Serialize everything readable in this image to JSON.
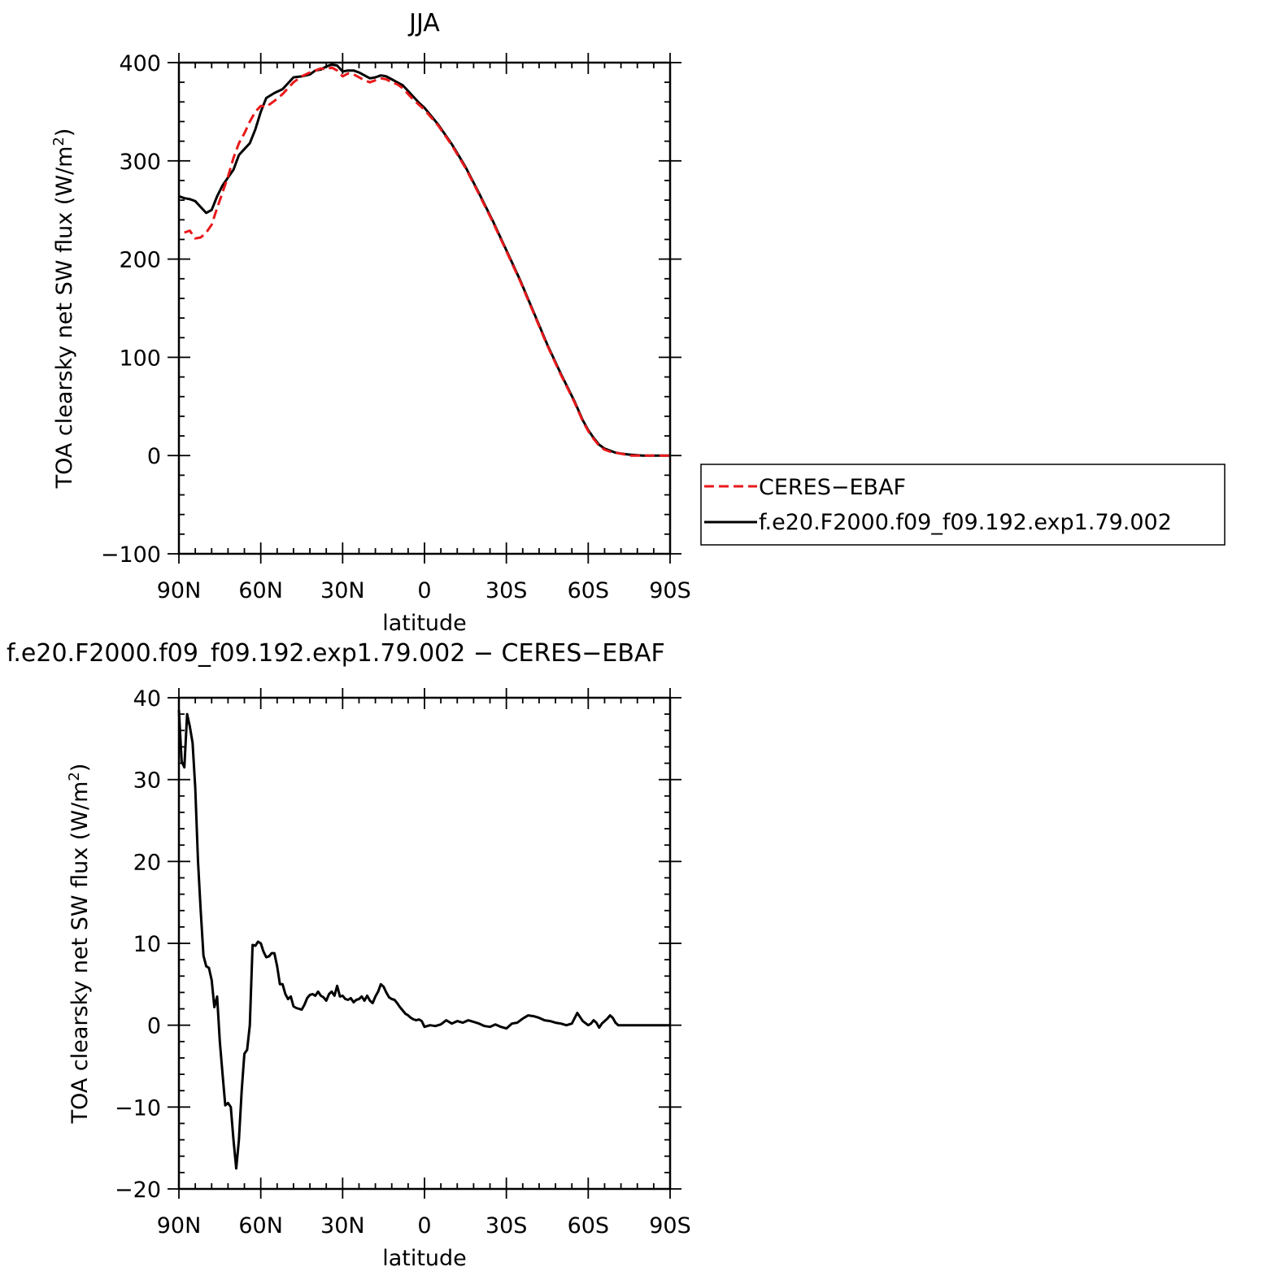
{
  "chart_data": [
    {
      "type": "line",
      "title": "JJA",
      "xlabel": "latitude",
      "ylabel": "TOA clearsky net SW flux (W/m²)",
      "ylabel_parts": {
        "main": "TOA clearsky net SW flux (W/m",
        "sup": "2",
        "end": ")"
      },
      "xlim": [
        90,
        -90
      ],
      "ylim": [
        -100,
        400
      ],
      "xticks": [
        90,
        60,
        30,
        0,
        -30,
        -60,
        -90
      ],
      "xtick_labels": [
        "90N",
        "60N",
        "30N",
        "0",
        "30S",
        "60S",
        "90S"
      ],
      "yticks": [
        -100,
        0,
        100,
        200,
        300,
        400
      ],
      "ytick_labels": [
        "−100",
        "0",
        "100",
        "200",
        "300",
        "400"
      ],
      "legend_position": "right",
      "series": [
        {
          "name": "CERES−EBAF",
          "color": "#e8191b",
          "dash": "dashed",
          "x": [
            88,
            86,
            84,
            82,
            80,
            78,
            76,
            74,
            72,
            70,
            68,
            66,
            64,
            62,
            60,
            58,
            55,
            52,
            50,
            48,
            45,
            42,
            40,
            38,
            36,
            34,
            32,
            30,
            28,
            26,
            24,
            22,
            20,
            18,
            16,
            14,
            12,
            10,
            8,
            6,
            4,
            2,
            0,
            -5,
            -10,
            -15,
            -20,
            -25,
            -30,
            -35,
            -40,
            -45,
            -50,
            -55,
            -58,
            -60,
            -62,
            -64,
            -66,
            -68,
            -70,
            -72,
            -75,
            -80,
            -85,
            -90
          ],
          "y": [
            227,
            229,
            221,
            222,
            227,
            235,
            252,
            268,
            284,
            303,
            318,
            328,
            340,
            350,
            356,
            355,
            361,
            368,
            374,
            380,
            386,
            390,
            392,
            394,
            393,
            395,
            392,
            386,
            389,
            388,
            385,
            382,
            380,
            382,
            384,
            383,
            380,
            378,
            374,
            368,
            362,
            357,
            352,
            336,
            316,
            293,
            266,
            238,
            208,
            178,
            145,
            112,
            82,
            54,
            35,
            25,
            17,
            10,
            6,
            4,
            3,
            2,
            0,
            0,
            0,
            0
          ]
        },
        {
          "name": "f.e20.F2000.f09_f09.192.exp1.79.002",
          "color": "#000000",
          "dash": "solid",
          "x": [
            90,
            88,
            86,
            84,
            82,
            80,
            78,
            76,
            74,
            72,
            70,
            68,
            66,
            64,
            62,
            60,
            58,
            55,
            52,
            50,
            48,
            45,
            42,
            40,
            38,
            36,
            34,
            32,
            30,
            28,
            26,
            24,
            22,
            20,
            18,
            16,
            14,
            12,
            10,
            8,
            6,
            4,
            2,
            0,
            -5,
            -10,
            -15,
            -20,
            -25,
            -30,
            -35,
            -40,
            -45,
            -50,
            -55,
            -58,
            -60,
            -62,
            -64,
            -66,
            -68,
            -70,
            -72,
            -75,
            -80,
            -85,
            -90
          ],
          "y": [
            264,
            262,
            261,
            259,
            253,
            247,
            250,
            264,
            275,
            283,
            291,
            306,
            312,
            318,
            332,
            350,
            364,
            369,
            373,
            379,
            385,
            386,
            388,
            392,
            393,
            396,
            398,
            397,
            391,
            392,
            392,
            390,
            387,
            384,
            385,
            387,
            386,
            383,
            380,
            377,
            371,
            365,
            359,
            354,
            337,
            317,
            294,
            267,
            239,
            209,
            179,
            146,
            113,
            83,
            55,
            36,
            26,
            18,
            11,
            7,
            5,
            3,
            2,
            1,
            0,
            0,
            0
          ]
        }
      ]
    },
    {
      "type": "line",
      "title": "f.e20.F2000.f09_f09.192.exp1.79.002 − CERES−EBAF",
      "xlabel": "latitude",
      "ylabel": "TOA clearsky net SW flux (W/m²)",
      "ylabel_parts": {
        "main": "TOA clearsky net SW flux (W/m",
        "sup": "2",
        "end": ")"
      },
      "xlim": [
        90,
        -90
      ],
      "ylim": [
        -20,
        40
      ],
      "xticks": [
        90,
        60,
        30,
        0,
        -30,
        -60,
        -90
      ],
      "xtick_labels": [
        "90N",
        "60N",
        "30N",
        "0",
        "30S",
        "60S",
        "90S"
      ],
      "yticks": [
        -20,
        -10,
        0,
        10,
        20,
        30,
        40
      ],
      "ytick_labels": [
        "−20",
        "−10",
        "0",
        "10",
        "20",
        "30",
        "40"
      ],
      "series": [
        {
          "color": "#000000",
          "dash": "solid",
          "x": [
            90,
            89,
            88,
            87,
            86,
            85,
            84,
            83,
            82,
            81,
            80,
            79,
            78,
            77,
            76,
            75,
            74,
            73,
            72,
            71,
            70,
            69,
            68,
            67,
            66,
            65,
            64,
            63,
            62,
            61,
            60,
            59,
            58,
            57,
            56,
            55,
            54,
            53,
            52,
            51,
            50,
            49,
            48,
            47,
            46,
            45,
            44,
            43,
            42,
            41,
            40,
            39,
            38,
            37,
            36,
            35,
            34,
            33,
            32,
            31,
            30,
            29,
            28,
            27,
            26,
            25,
            24,
            23,
            22,
            21,
            20,
            19,
            18,
            17,
            16,
            15,
            14,
            13,
            12,
            11,
            10,
            9,
            8,
            7,
            6,
            5,
            4,
            3,
            2,
            1,
            0,
            -2,
            -4,
            -6,
            -8,
            -10,
            -12,
            -14,
            -16,
            -18,
            -20,
            -22,
            -24,
            -26,
            -28,
            -30,
            -32,
            -34,
            -36,
            -38,
            -40,
            -42,
            -44,
            -46,
            -48,
            -50,
            -52,
            -54,
            -56,
            -58,
            -60,
            -61,
            -62,
            -63,
            -64,
            -65,
            -66,
            -67,
            -68,
            -69,
            -70,
            -71,
            -72,
            -73,
            -74,
            -75,
            -76,
            -77,
            -78,
            -79,
            -80,
            -82,
            -84,
            -86,
            -88,
            -90
          ],
          "y": [
            38.5,
            32.2,
            31.5,
            38.0,
            36.5,
            34.5,
            29.0,
            20.0,
            14.0,
            8.5,
            7.2,
            7.0,
            5.5,
            2.2,
            3.5,
            -2.0,
            -6.0,
            -9.8,
            -9.5,
            -10.0,
            -14.0,
            -17.5,
            -14.0,
            -8.0,
            -3.5,
            -3.0,
            0.0,
            9.8,
            9.7,
            10.2,
            10.0,
            9.0,
            8.3,
            8.4,
            8.8,
            8.8,
            7.2,
            5.0,
            5.0,
            3.8,
            3.2,
            3.5,
            2.3,
            2.1,
            2.0,
            1.9,
            2.5,
            3.3,
            3.7,
            3.8,
            3.6,
            4.1,
            3.6,
            3.4,
            3.0,
            3.8,
            4.1,
            3.6,
            4.8,
            3.5,
            3.6,
            3.2,
            3.1,
            3.3,
            2.8,
            3.1,
            3.2,
            3.5,
            3.0,
            3.6,
            3.0,
            2.7,
            3.5,
            4.1,
            5.0,
            4.7,
            4.0,
            3.4,
            3.2,
            3.1,
            2.7,
            2.2,
            1.8,
            1.4,
            1.2,
            0.9,
            0.7,
            0.6,
            0.7,
            0.5,
            -0.2,
            0.0,
            -0.1,
            0.1,
            0.6,
            0.2,
            0.5,
            0.3,
            0.6,
            0.4,
            0.2,
            -0.1,
            -0.2,
            0.1,
            -0.2,
            -0.4,
            0.2,
            0.3,
            0.8,
            1.2,
            1.1,
            0.9,
            0.6,
            0.5,
            0.3,
            0.2,
            0.0,
            0.2,
            1.5,
            0.5,
            0.0,
            0.2,
            0.6,
            0.3,
            -0.3,
            0.2,
            0.5,
            0.8,
            1.2,
            0.9,
            0.3,
            0.0,
            0.0,
            0.0,
            0.0,
            0.0,
            0.0,
            0.0,
            0.0,
            0.0,
            0.0,
            0.0,
            0.0,
            0.0,
            0.0,
            0.0
          ]
        }
      ]
    }
  ]
}
